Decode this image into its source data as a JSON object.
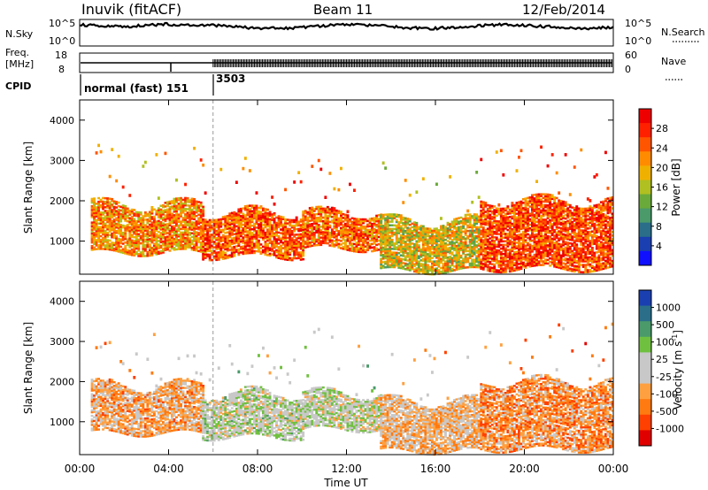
{
  "header": {
    "station": "Inuvik (fitACF)",
    "beam": "Beam 11",
    "date": "12/Feb/2014"
  },
  "top_panels": {
    "nsky_label": "N.Sky",
    "nsky_ticks": [
      "10^5",
      "10^0"
    ],
    "nsearch_label": "N.Search",
    "nsearch_ticks": [
      "10^5",
      "10^0"
    ],
    "freq_label_1": "Freq.",
    "freq_label_2": "[MHz]",
    "freq_ticks": [
      "18",
      "8"
    ],
    "nave_label": "Nave",
    "nave_ticks": [
      "60",
      "0"
    ],
    "cpid_label": "CPID",
    "cpid_modes": [
      {
        "name": "normal (fast) 151",
        "start_hour": 0
      },
      {
        "name": "3503",
        "start_hour": 6
      }
    ]
  },
  "axes": {
    "ylabel": "Slant Range [km]",
    "y_ticks": [
      1000,
      2000,
      3000,
      4000
    ],
    "y_range": [
      180,
      4500
    ],
    "x_ticks": [
      "00:00",
      "04:00",
      "08:00",
      "12:00",
      "16:00",
      "20:00",
      "00:00"
    ],
    "x_range_hours": [
      0,
      24
    ],
    "xlabel": "Time UT"
  },
  "chart_data": [
    {
      "type": "heatmap",
      "title": "",
      "quantity": "Power",
      "colorbar_label": "Power [dB]",
      "colorbar_ticks": [
        "28",
        "24",
        "20",
        "16",
        "12",
        "8",
        "4"
      ],
      "colorbar_range": [
        0,
        32
      ],
      "colors": [
        "#1010ff",
        "#1a3fb0",
        "#2a6e8a",
        "#4a9a6a",
        "#6aaa3a",
        "#b0c020",
        "#f0b000",
        "#ff8c00",
        "#ff5500",
        "#ff2000",
        "#ee0000"
      ],
      "x_range_hours": [
        0,
        24
      ],
      "y_range_km": [
        180,
        4500
      ],
      "echo_bands": [
        {
          "t": [
            0.5,
            5.5
          ],
          "range_km": [
            700,
            1900
          ],
          "value_db": 22
        },
        {
          "t": [
            5.5,
            10.0
          ],
          "range_km": [
            600,
            1700
          ],
          "value_db": 25
        },
        {
          "t": [
            10.0,
            13.5
          ],
          "range_km": [
            800,
            1700
          ],
          "value_db": 24
        },
        {
          "t": [
            13.5,
            18.0
          ],
          "range_km": [
            250,
            1500
          ],
          "value_db": 18
        },
        {
          "t": [
            18.0,
            24.0
          ],
          "range_km": [
            300,
            2000
          ],
          "value_db": 26
        }
      ]
    },
    {
      "type": "heatmap",
      "title": "",
      "quantity": "Velocity",
      "colorbar_label": "Velocity [m s^-1]",
      "colorbar_ticks": [
        "1000",
        "500",
        "100",
        "25",
        "-25",
        "-100",
        "-500",
        "-1000"
      ],
      "colorbar_range": [
        -1000,
        1000
      ],
      "colors": [
        "#e00000",
        "#ff4000",
        "#ff7a10",
        "#ffa040",
        "#c8c8c8",
        "#c8c8c8",
        "#70c040",
        "#4a9a6a",
        "#2a6e8a",
        "#1a3fb0"
      ],
      "x_range_hours": [
        0,
        24
      ],
      "y_range_km": [
        180,
        4500
      ],
      "echo_bands": [
        {
          "t": [
            0.5,
            5.5
          ],
          "range_km": [
            700,
            1900
          ],
          "value_ms": -300
        },
        {
          "t": [
            5.5,
            10.0
          ],
          "range_km": [
            600,
            1700
          ],
          "value_ms": 80
        },
        {
          "t": [
            10.0,
            13.5
          ],
          "range_km": [
            800,
            1700
          ],
          "value_ms": 40
        },
        {
          "t": [
            13.5,
            18.0
          ],
          "range_km": [
            250,
            1500
          ],
          "value_ms": -200
        },
        {
          "t": [
            18.0,
            24.0
          ],
          "range_km": [
            300,
            2000
          ],
          "value_ms": -400
        }
      ]
    }
  ]
}
